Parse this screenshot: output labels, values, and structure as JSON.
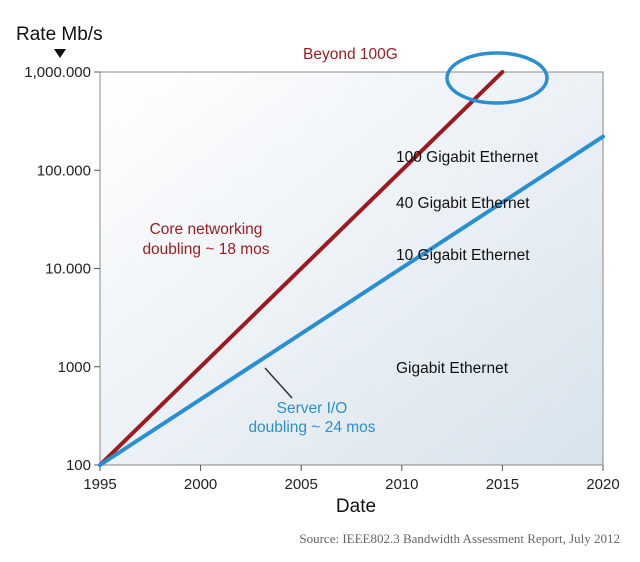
{
  "chart_data": {
    "type": "line",
    "ylabel": "Rate Mb/s",
    "xlabel": "Date",
    "y_scale": "log",
    "ylim": [
      100,
      1000000
    ],
    "xlim": [
      1995,
      2020
    ],
    "x_ticks": [
      1995,
      2000,
      2005,
      2010,
      2015,
      2020
    ],
    "y_ticks": [
      {
        "value": 100,
        "label": "100"
      },
      {
        "value": 1000,
        "label": "1000"
      },
      {
        "value": 10000,
        "label": "10.000"
      },
      {
        "value": 100000,
        "label": "100.000"
      },
      {
        "value": 1000000,
        "label": "1,000.000"
      }
    ],
    "series": [
      {
        "key": "core",
        "x": [
          1995,
          2015
        ],
        "y": [
          100,
          1000000
        ],
        "color": "#9b1b1f"
      },
      {
        "key": "server",
        "x": [
          1995,
          2020
        ],
        "y": [
          100,
          220000
        ],
        "color": "#2a8fd0"
      }
    ],
    "annotations": {
      "beyond": "Beyond 100G",
      "core_line1": "Core networking",
      "core_line2": "doubling ~ 18 mos",
      "server_line1": "Server I/O",
      "server_line2": "doubling ~ 24 mos",
      "ge100": "100 Gigabit Ethernet",
      "ge40": "40 Gigabit Ethernet",
      "ge10": "10 Gigabit Ethernet",
      "ge1": "Gigabit Ethernet"
    },
    "source": "Source: IEEE802.3 Bandwidth Assessment Report, July 2012",
    "colors": {
      "plot_bg_top": "#ffffff",
      "plot_bg_bottom": "#d8e3ec",
      "core": "#9b1b1f",
      "server": "#2a8fd0",
      "highlight_ellipse": "#2a8fd0"
    }
  }
}
